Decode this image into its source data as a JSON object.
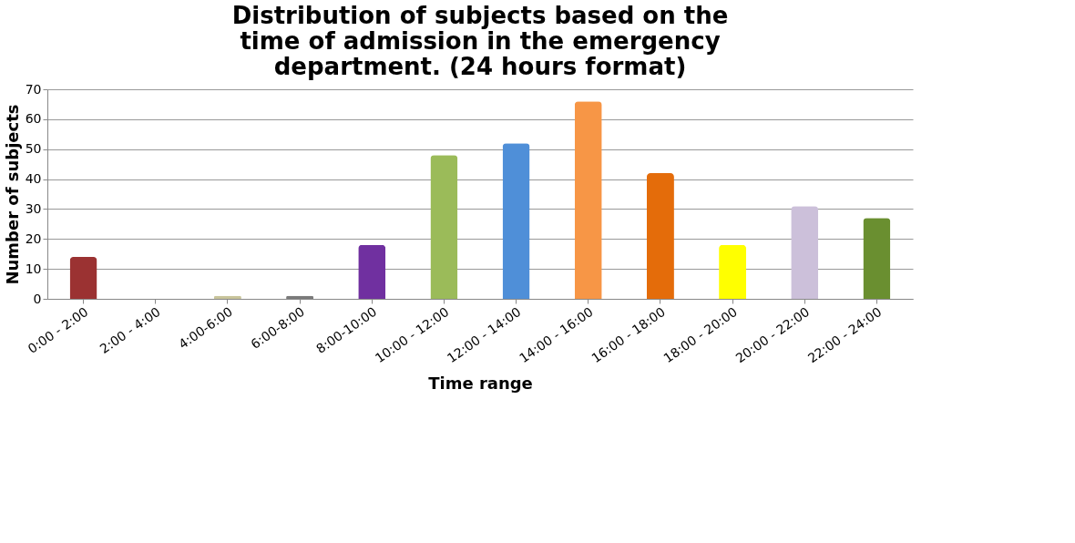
{
  "chart_data": {
    "type": "bar",
    "title": [
      "Distribution of subjects based on the",
      "time of admission in the emergency",
      "department. (24 hours format)"
    ],
    "xlabel": "Time range",
    "ylabel": "Number of subjects",
    "categories": [
      "0:00 - 2:00",
      "2:00 - 4:00",
      "4:00-6:00",
      "6:00-8:00",
      "8:00-10:00",
      "10:00 - 12:00",
      "12:00 - 14:00",
      "14:00 - 16:00",
      "16:00 - 18:00",
      "18:00 - 20:00",
      "20:00 - 22:00",
      "22:00 - 24:00"
    ],
    "values": [
      14,
      0,
      1,
      1,
      18,
      48,
      52,
      66,
      42,
      18,
      31,
      27
    ],
    "colors": [
      "#9b3232",
      "#3a6fb0",
      "#c8c49a",
      "#7a7a7a",
      "#7030a0",
      "#9bbb59",
      "#4f8fd8",
      "#f79646",
      "#e46c0a",
      "#ffff00",
      "#ccc0da",
      "#6a8f30"
    ],
    "ylim": [
      0,
      70
    ],
    "yticks": [
      0,
      10,
      20,
      30,
      40,
      50,
      60,
      70
    ],
    "grid": "y"
  }
}
